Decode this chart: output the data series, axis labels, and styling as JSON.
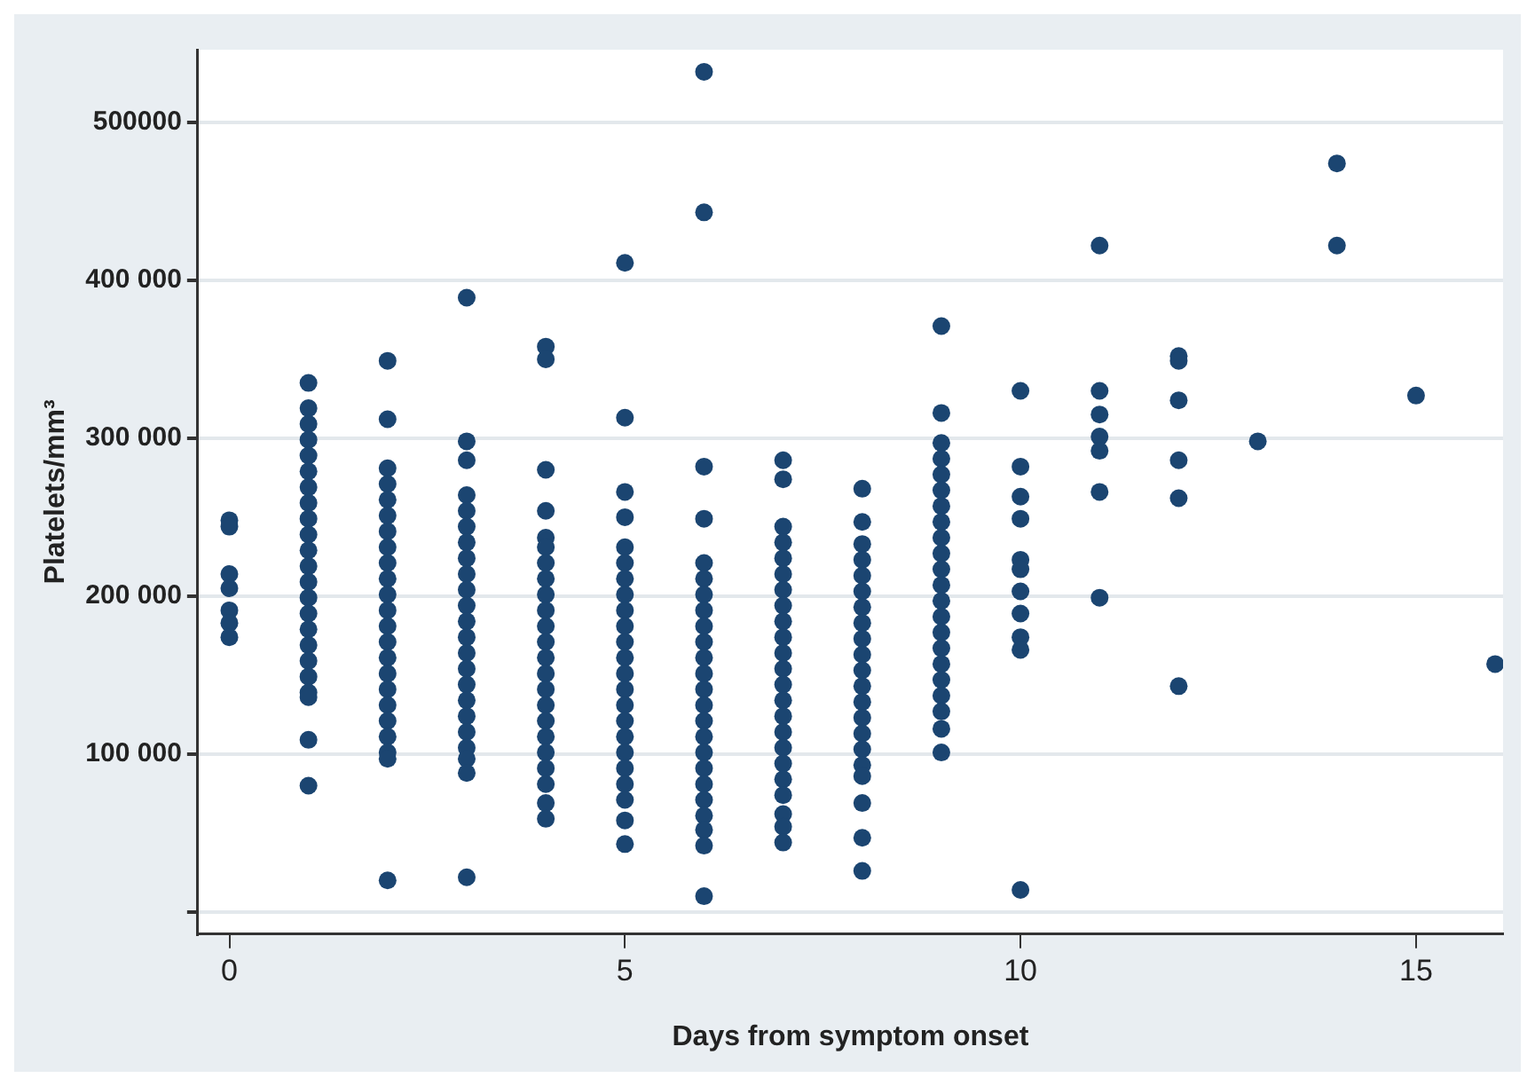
{
  "chart_data": {
    "type": "scatter",
    "xlabel": "Days from symptom onset",
    "ylabel": "Platelets/mm³",
    "xlim": [
      -0.4,
      16.1
    ],
    "xticks": [
      0,
      5,
      10,
      15
    ],
    "ylim": [
      -14000,
      546000
    ],
    "yticks": [
      {
        "value": 0,
        "label": null
      },
      {
        "value": 100000,
        "label": "100 000"
      },
      {
        "value": 200000,
        "label": "200 000"
      },
      {
        "value": 300000,
        "label": "300 000"
      },
      {
        "value": 400000,
        "label": "400 000"
      },
      {
        "value": 500000,
        "label": "500000"
      }
    ],
    "grid": "y",
    "marker": "circle",
    "legend": false,
    "series": [
      {
        "color": "#1b4571",
        "x": [
          0,
          0,
          0,
          0,
          0,
          0,
          0,
          1,
          1,
          1,
          1,
          1,
          1,
          1,
          1,
          1,
          1,
          1,
          1,
          1,
          1,
          1,
          1,
          1,
          1,
          1,
          1,
          1,
          1,
          1,
          2,
          2,
          2,
          2,
          2,
          2,
          2,
          2,
          2,
          2,
          2,
          2,
          2,
          2,
          2,
          2,
          2,
          2,
          2,
          2,
          2,
          2,
          2,
          3,
          3,
          3,
          3,
          3,
          3,
          3,
          3,
          3,
          3,
          3,
          3,
          3,
          3,
          3,
          3,
          3,
          3,
          3,
          3,
          3,
          3,
          3,
          4,
          4,
          4,
          4,
          4,
          4,
          4,
          4,
          4,
          4,
          4,
          4,
          4,
          4,
          4,
          4,
          4,
          4,
          4,
          4,
          4,
          4,
          4,
          5,
          5,
          5,
          5,
          5,
          5,
          5,
          5,
          5,
          5,
          5,
          5,
          5,
          5,
          5,
          5,
          5,
          5,
          5,
          5,
          5,
          5,
          5,
          6,
          6,
          6,
          6,
          6,
          6,
          6,
          6,
          6,
          6,
          6,
          6,
          6,
          6,
          6,
          6,
          6,
          6,
          6,
          6,
          6,
          6,
          6,
          6,
          7,
          7,
          7,
          7,
          7,
          7,
          7,
          7,
          7,
          7,
          7,
          7,
          7,
          7,
          7,
          7,
          7,
          7,
          7,
          7,
          7,
          7,
          7,
          8,
          8,
          8,
          8,
          8,
          8,
          8,
          8,
          8,
          8,
          8,
          8,
          8,
          8,
          8,
          8,
          8,
          8,
          8,
          8,
          8,
          9,
          9,
          9,
          9,
          9,
          9,
          9,
          9,
          9,
          9,
          9,
          9,
          9,
          9,
          9,
          9,
          9,
          9,
          9,
          9,
          9,
          9,
          10,
          10,
          10,
          10,
          10,
          10,
          10,
          10,
          10,
          10,
          10,
          11,
          11,
          11,
          11,
          11,
          11,
          11,
          12,
          12,
          12,
          12,
          12,
          12,
          13,
          14,
          14,
          15,
          16
        ],
        "values": [
          248000,
          244000,
          214000,
          205000,
          191000,
          183000,
          174000,
          335000,
          319000,
          309000,
          299000,
          289000,
          279000,
          269000,
          259000,
          249000,
          239000,
          229000,
          219000,
          209000,
          199000,
          189000,
          179000,
          169000,
          159000,
          149000,
          139000,
          136000,
          109000,
          80000,
          349000,
          312000,
          281000,
          271000,
          261000,
          251000,
          241000,
          231000,
          221000,
          211000,
          201000,
          191000,
          181000,
          171000,
          161000,
          151000,
          141000,
          131000,
          121000,
          111000,
          101000,
          97000,
          20000,
          389000,
          298000,
          286000,
          264000,
          254000,
          244000,
          234000,
          224000,
          214000,
          204000,
          194000,
          184000,
          174000,
          164000,
          154000,
          144000,
          134000,
          124000,
          114000,
          104000,
          97000,
          88000,
          22000,
          358000,
          350000,
          280000,
          254000,
          237000,
          231000,
          221000,
          211000,
          201000,
          191000,
          181000,
          171000,
          161000,
          151000,
          141000,
          131000,
          121000,
          111000,
          101000,
          91000,
          81000,
          69000,
          59000,
          411000,
          313000,
          266000,
          250000,
          231000,
          221000,
          211000,
          201000,
          191000,
          181000,
          171000,
          161000,
          151000,
          141000,
          131000,
          121000,
          111000,
          101000,
          91000,
          81000,
          71000,
          58000,
          43000,
          532000,
          443000,
          282000,
          249000,
          221000,
          211000,
          201000,
          191000,
          181000,
          171000,
          161000,
          151000,
          141000,
          131000,
          121000,
          111000,
          101000,
          91000,
          81000,
          71000,
          61000,
          52000,
          42000,
          10000,
          286000,
          274000,
          244000,
          234000,
          224000,
          214000,
          204000,
          194000,
          184000,
          174000,
          164000,
          154000,
          144000,
          134000,
          124000,
          114000,
          104000,
          94000,
          84000,
          74000,
          62000,
          54000,
          44000,
          268000,
          247000,
          233000,
          223000,
          213000,
          203000,
          193000,
          183000,
          173000,
          163000,
          153000,
          143000,
          133000,
          123000,
          113000,
          103000,
          93000,
          86000,
          69000,
          47000,
          26000,
          371000,
          316000,
          297000,
          287000,
          277000,
          267000,
          257000,
          247000,
          237000,
          227000,
          217000,
          207000,
          197000,
          187000,
          177000,
          167000,
          157000,
          147000,
          137000,
          127000,
          116000,
          101000,
          330000,
          282000,
          263000,
          249000,
          223000,
          217000,
          203000,
          189000,
          174000,
          166000,
          14000,
          422000,
          330000,
          315000,
          301000,
          292000,
          266000,
          199000,
          352000,
          349000,
          324000,
          286000,
          262000,
          143000,
          298000,
          474000,
          422000,
          327000,
          157000
        ]
      }
    ]
  }
}
